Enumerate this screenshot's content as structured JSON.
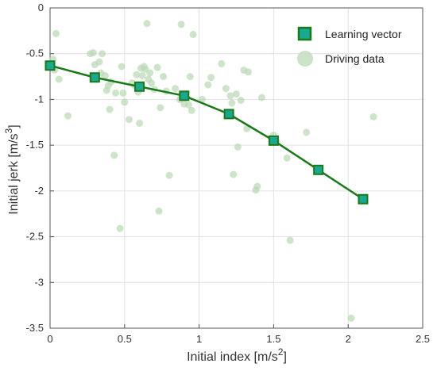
{
  "chart_data": {
    "type": "scatter",
    "title": "",
    "xlabel": "Initial  index [m/s2]",
    "xlabel_parts": {
      "base": "Initial  index [m/s",
      "sup": "2",
      "close": "]"
    },
    "ylabel": "Initial jerk [m/s3]",
    "ylabel_parts": {
      "base": "Initial jerk [m/s",
      "sup": "3",
      "close": "]"
    },
    "xlim": [
      0,
      2.5
    ],
    "ylim": [
      -3.5,
      0
    ],
    "xticks": [
      0,
      0.5,
      1,
      1.5,
      2,
      2.5
    ],
    "yticks": [
      0,
      -0.5,
      -1,
      -1.5,
      -2,
      -2.5,
      -3,
      -3.5
    ],
    "xtick_labels": [
      "0",
      "0.5",
      "1",
      "1.5",
      "2",
      "2.5"
    ],
    "ytick_labels": [
      "0",
      "-0.5",
      "-1",
      "-1.5",
      "-2",
      "-2.5",
      "-3",
      "-3.5"
    ],
    "grid": true,
    "legend_position": "top-right",
    "series": [
      {
        "name": "Learning vector",
        "kind": "line-marker",
        "color": "#1a7a1a",
        "marker_fill": "#1aa890",
        "x": [
          0,
          0.3,
          0.6,
          0.9,
          1.2,
          1.5,
          1.8,
          2.1
        ],
        "y": [
          -0.63,
          -0.76,
          -0.86,
          -0.96,
          -1.16,
          -1.45,
          -1.77,
          -2.09
        ]
      },
      {
        "name": "Driving data",
        "kind": "scatter",
        "color": "#b9d9b4",
        "x": [
          0.02,
          0.04,
          0.03,
          0.06,
          0.12,
          0.27,
          0.29,
          0.3,
          0.33,
          0.35,
          0.34,
          0.37,
          0.38,
          0.39,
          0.4,
          0.41,
          0.43,
          0.44,
          0.47,
          0.48,
          0.49,
          0.5,
          0.53,
          0.55,
          0.57,
          0.58,
          0.59,
          0.6,
          0.61,
          0.62,
          0.63,
          0.64,
          0.65,
          0.66,
          0.67,
          0.68,
          0.7,
          0.72,
          0.73,
          0.74,
          0.76,
          0.78,
          0.8,
          0.84,
          0.87,
          0.88,
          0.9,
          0.93,
          0.94,
          0.95,
          0.96,
          1.02,
          1.06,
          1.08,
          1.15,
          1.18,
          1.21,
          1.22,
          1.23,
          1.25,
          1.26,
          1.28,
          1.3,
          1.32,
          1.33,
          1.38,
          1.39,
          1.42,
          1.5,
          1.52,
          1.59,
          1.61,
          1.72,
          2.02,
          2.17
        ],
        "y": [
          -0.56,
          -0.28,
          -0.68,
          -0.78,
          -1.18,
          -0.5,
          -0.49,
          -0.62,
          -0.59,
          -0.5,
          -0.71,
          -0.74,
          -0.9,
          -0.85,
          -1.11,
          -0.81,
          -1.61,
          -0.93,
          -2.41,
          -0.64,
          -0.93,
          -1.03,
          -1.22,
          -0.82,
          -0.85,
          -0.73,
          -0.92,
          -1.26,
          -0.66,
          -0.74,
          -0.64,
          -0.67,
          -0.17,
          -0.78,
          -0.71,
          -0.82,
          -0.89,
          -0.65,
          -2.22,
          -1.09,
          -0.75,
          -0.91,
          -1.83,
          -0.88,
          -1.0,
          -0.18,
          -1.05,
          -1.06,
          -0.75,
          -1.12,
          -0.29,
          -1.0,
          -0.84,
          -0.76,
          -0.61,
          -0.88,
          -0.96,
          -1.04,
          -1.82,
          -0.94,
          -1.52,
          -1.01,
          -0.68,
          -1.32,
          -0.7,
          -1.99,
          -1.95,
          -0.98,
          -1.39,
          -1.46,
          -1.64,
          -2.54,
          -1.36,
          -3.39,
          -1.19
        ]
      }
    ]
  }
}
